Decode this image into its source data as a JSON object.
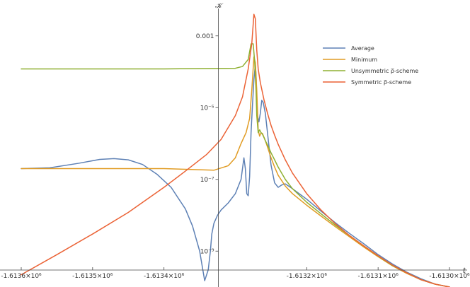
{
  "chart_data": {
    "type": "line",
    "xlabel": "t",
    "ylabel": "𝒦",
    "y_scale": "log",
    "xlim": [
      -1613600,
      -1613000
    ],
    "ylim": [
      1e-10,
      0.01
    ],
    "x_ticks": [
      {
        "value": -1613600,
        "label": "-1.6136×10⁶"
      },
      {
        "value": -1613500,
        "label": "-1.6135×10⁶"
      },
      {
        "value": -1613400,
        "label": "-1.6134×10⁶"
      },
      {
        "value": -1613200,
        "label": "-1.6132×10⁶"
      },
      {
        "value": -1613100,
        "label": "-1.6131×10⁶"
      },
      {
        "value": -1613000,
        "label": "-1.6130×10⁶"
      }
    ],
    "y_ticks": [
      {
        "value": 0.001,
        "label": "0.001"
      },
      {
        "value": 1e-05,
        "label": "10⁻⁵"
      },
      {
        "value": 1e-07,
        "label": "10⁻⁷"
      },
      {
        "value": 1e-09,
        "label": "10⁻⁹"
      }
    ],
    "legend_position": "top-right",
    "series": [
      {
        "name": "Average",
        "color": "#5E81B5",
        "x": [
          -1613600,
          -1613560,
          -1613520,
          -1613490,
          -1613470,
          -1613450,
          -1613430,
          -1613410,
          -1613390,
          -1613370,
          -1613360,
          -1613350,
          -1613343,
          -1613338,
          -1613335,
          -1613333,
          -1613330,
          -1613325,
          -1613320,
          -1613310,
          -1613300,
          -1613292,
          -1613288,
          -1613286,
          -1613284,
          -1613282,
          -1613280,
          -1613278,
          -1613276,
          -1613274,
          -1613272,
          -1613271,
          -1613270,
          -1613269,
          -1613267,
          -1613265,
          -1613263,
          -1613261,
          -1613258,
          -1613255,
          -1613250,
          -1613245,
          -1613240,
          -1613235,
          -1613230,
          -1613220,
          -1613200,
          -1613180,
          -1613160,
          -1613140,
          -1613120,
          -1613100,
          -1613080,
          -1613060,
          -1613040,
          -1613020,
          -1613000
        ],
        "y": [
          2e-07,
          2.1e-07,
          2.8e-07,
          3.6e-07,
          3.8e-07,
          3.5e-07,
          2.6e-07,
          1.4e-07,
          6e-08,
          1.5e-08,
          5e-09,
          1e-09,
          1.5e-10,
          3e-10,
          1e-09,
          3e-09,
          6e-09,
          1e-08,
          1.4e-08,
          2.2e-08,
          4e-08,
          1e-07,
          4e-07,
          2e-07,
          4e-08,
          3.5e-08,
          1.2e-07,
          2e-06,
          1.2e-05,
          6e-05,
          0.00016,
          8e-05,
          2e-05,
          6e-06,
          4e-06,
          7e-06,
          1.6e-05,
          1.4e-05,
          7e-06,
          2e-06,
          2.5e-07,
          8e-08,
          6e-08,
          7e-08,
          7.5e-08,
          5.5e-08,
          2.8e-08,
          1.3e-08,
          6.2e-09,
          3.1e-09,
          1.6e-09,
          8e-10,
          4.4e-10,
          2.6e-10,
          1.7e-10,
          1.2e-10,
          1e-10
        ]
      },
      {
        "name": "Minimum",
        "color": "#E19C24",
        "x": [
          -1613600,
          -1613500,
          -1613400,
          -1613330,
          -1613310,
          -1613300,
          -1613292,
          -1613285,
          -1613280,
          -1613277,
          -1613274,
          -1613272,
          -1613270,
          -1613268,
          -1613266,
          -1613264,
          -1613262,
          -1613260,
          -1613258,
          -1613255,
          -1613250,
          -1613245,
          -1613240,
          -1613230,
          -1613220,
          -1613200,
          -1613180,
          -1613160,
          -1613140,
          -1613120,
          -1613100,
          -1613080,
          -1613060,
          -1613040,
          -1613020,
          -1613000
        ],
        "y": [
          2e-07,
          2e-07,
          2e-07,
          1.8e-07,
          2.4e-07,
          4e-07,
          1e-06,
          2e-06,
          5e-06,
          3e-05,
          0.00026,
          0.00018,
          3e-05,
          2.4e-06,
          1.6e-06,
          2e-06,
          1.9e-06,
          1.5e-06,
          1.2e-06,
          8e-07,
          4e-07,
          2.2e-07,
          1.3e-07,
          6.5e-08,
          4e-08,
          1.9e-08,
          9.5e-09,
          4.8e-09,
          2.5e-09,
          1.3e-09,
          7e-10,
          3.9e-10,
          2.4e-10,
          1.6e-10,
          1.2e-10,
          1e-10
        ]
      },
      {
        "name": "Unsymmetric ρ̅-scheme",
        "color": "#8FB032",
        "x": [
          -1613600,
          -1613400,
          -1613300,
          -1613290,
          -1613282,
          -1613278,
          -1613275,
          -1613273,
          -1613271,
          -1613270,
          -1613268,
          -1613266,
          -1613264,
          -1613262,
          -1613260,
          -1613258,
          -1613256,
          -1613253,
          -1613250,
          -1613245,
          -1613240,
          -1613230,
          -1613220,
          -1613200,
          -1613180,
          -1613160,
          -1613140,
          -1613120,
          -1613100,
          -1613080,
          -1613060,
          -1613040,
          -1613020,
          -1613000
        ],
        "y": [
          0.00012,
          0.00012,
          0.000125,
          0.00014,
          0.00022,
          0.0006,
          0.0006,
          0.0002,
          3e-05,
          6e-06,
          2e-06,
          2.4e-06,
          2e-06,
          1.8e-06,
          1.5e-06,
          1.2e-06,
          1e-06,
          7.5e-07,
          5.5e-07,
          3.5e-07,
          2.2e-07,
          1e-07,
          5.5e-08,
          2.3e-08,
          1.1e-08,
          5.3e-09,
          2.7e-09,
          1.4e-09,
          7.3e-10,
          4e-10,
          2.5e-10,
          1.6e-10,
          1.2e-10,
          1e-10
        ]
      },
      {
        "name": "Symmetric ρ̅-scheme",
        "color": "#EB6235",
        "x": [
          -1613600,
          -1613550,
          -1613500,
          -1613450,
          -1613400,
          -1613370,
          -1613340,
          -1613320,
          -1613300,
          -1613290,
          -1613282,
          -1613277,
          -1613274,
          -1613272,
          -1613270,
          -1613268,
          -1613265,
          -1613260,
          -1613255,
          -1613250,
          -1613245,
          -1613240,
          -1613230,
          -1613220,
          -1613200,
          -1613180,
          -1613160,
          -1613140,
          -1613120,
          -1613100,
          -1613080,
          -1613060,
          -1613040,
          -1613020,
          -1613000
        ],
        "y": [
          2.2e-10,
          8e-10,
          3e-09,
          1.2e-08,
          6e-08,
          1.7e-07,
          5e-07,
          1.3e-06,
          6e-06,
          2e-05,
          0.00012,
          0.0006,
          0.004,
          0.003,
          0.0004,
          0.00012,
          5e-05,
          1.7e-05,
          7e-06,
          3.2e-06,
          1.7e-06,
          9.5e-07,
          3.5e-07,
          1.5e-07,
          4e-08,
          1.4e-08,
          5.8e-09,
          2.7e-09,
          1.4e-09,
          7.4e-10,
          4.1e-10,
          2.5e-10,
          1.6e-10,
          1.2e-10,
          1e-10
        ]
      }
    ]
  }
}
